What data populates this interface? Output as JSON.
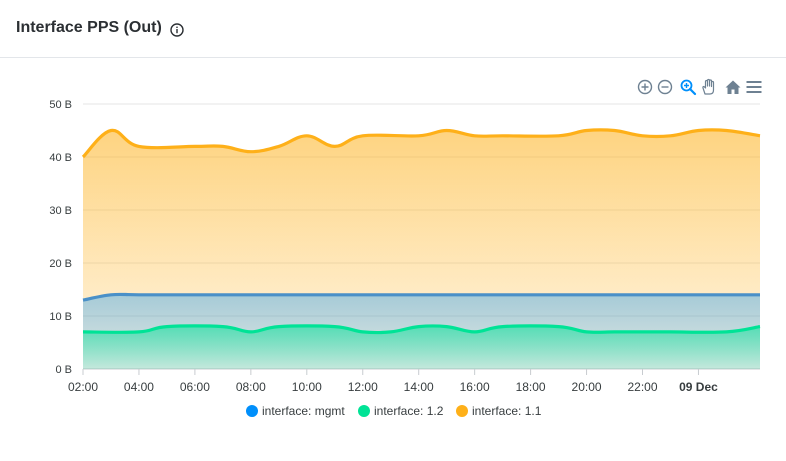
{
  "header": {
    "title": "Interface PPS (Out)",
    "info_icon": "info-icon"
  },
  "toolbar": {
    "icons": [
      "zoom-in-icon",
      "zoom-out-icon",
      "selection-zoom-icon",
      "pan-icon",
      "home-icon",
      "menu-icon"
    ],
    "accent": "#008ffb",
    "icon_color": "#6e8192"
  },
  "chart_data": {
    "type": "area",
    "title": "Interface PPS (Out)",
    "xlabel": "",
    "ylabel": "",
    "x_tick_labels": [
      "02:00",
      "04:00",
      "06:00",
      "08:00",
      "10:00",
      "12:00",
      "14:00",
      "16:00",
      "18:00",
      "20:00",
      "22:00",
      "09 Dec"
    ],
    "y_tick_labels": [
      "0 B",
      "10 B",
      "20 B",
      "30 B",
      "40 B",
      "50 B"
    ],
    "ylim": [
      0,
      50
    ],
    "xlim_hours": [
      2,
      26.2
    ],
    "grid": true,
    "legend_position": "bottom",
    "series": [
      {
        "name": "interface: mgmt",
        "color": "#008ffb",
        "line_color": "#4a90c8",
        "x": [
          2,
          3,
          4,
          6,
          8,
          10,
          12,
          14,
          16,
          18,
          20,
          22,
          24,
          26.2
        ],
        "values": [
          13,
          14,
          14,
          14,
          14,
          14,
          14,
          14,
          14,
          14,
          14,
          14,
          14,
          14
        ]
      },
      {
        "name": "interface: 1.2",
        "color": "#00e396",
        "x": [
          2,
          4,
          5,
          7,
          8,
          9,
          11,
          12,
          13,
          14,
          15,
          16,
          17,
          19,
          20,
          21,
          22,
          23,
          25,
          26.2
        ],
        "values": [
          7,
          7,
          8,
          8,
          7,
          8,
          8,
          7,
          7,
          8,
          8,
          7,
          8,
          8,
          7,
          7,
          7,
          7,
          7,
          8
        ]
      },
      {
        "name": "interface: 1.1",
        "color": "#feb019",
        "x": [
          2,
          3,
          4,
          6,
          7,
          8,
          9,
          10,
          11,
          12,
          14,
          15,
          16,
          17,
          19,
          20,
          21,
          22,
          23,
          24,
          25,
          26.2
        ],
        "values": [
          40,
          45,
          42,
          42,
          42,
          41,
          42,
          44,
          42,
          44,
          44,
          45,
          44,
          44,
          44,
          45,
          45,
          44,
          44,
          45,
          45,
          44
        ]
      }
    ]
  }
}
